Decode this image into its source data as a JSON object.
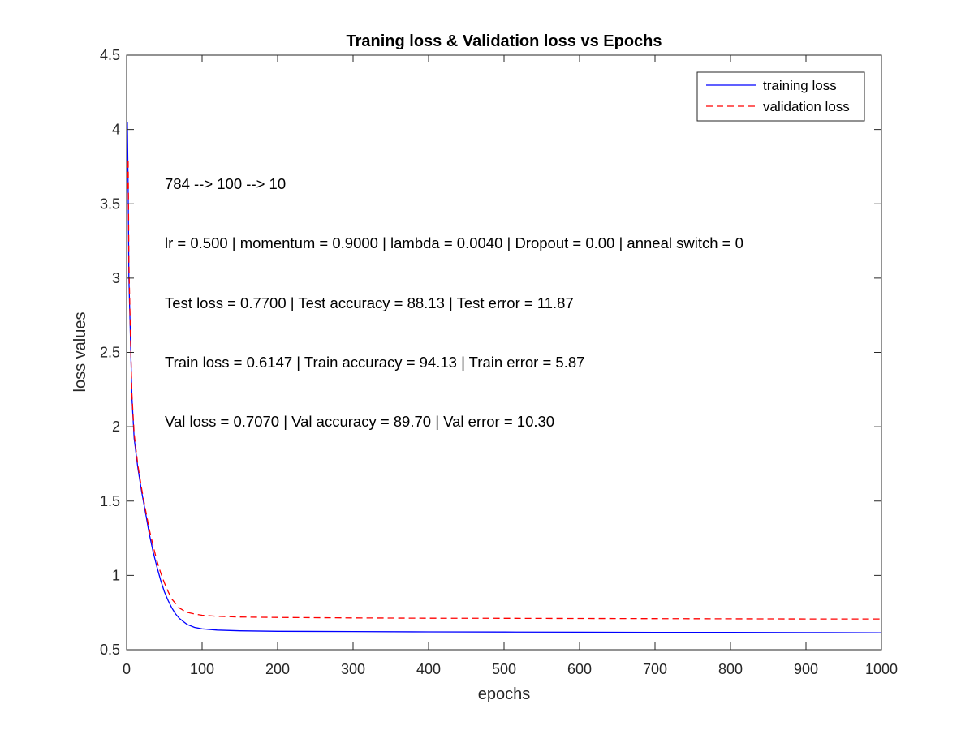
{
  "chart_data": {
    "type": "line",
    "title": "Traning loss & Validation loss vs Epochs",
    "xlabel": "epochs",
    "ylabel": "loss values",
    "xlim": [
      0,
      1000
    ],
    "ylim": [
      0.5,
      4.5
    ],
    "xticks": [
      0,
      100,
      200,
      300,
      400,
      500,
      600,
      700,
      800,
      900,
      1000
    ],
    "yticks": [
      0.5,
      1,
      1.5,
      2,
      2.5,
      3,
      3.5,
      4,
      4.5
    ],
    "ytick_labels": [
      "0.5",
      "1",
      "1.5",
      "2",
      "2.5",
      "3",
      "3.5",
      "4",
      "4.5"
    ],
    "grid": false,
    "legend_position": "top-right",
    "series": [
      {
        "name": "training loss",
        "color": "#0000ff",
        "style": "solid",
        "x": [
          1,
          2,
          3,
          5,
          7,
          10,
          15,
          20,
          25,
          30,
          35,
          40,
          45,
          50,
          55,
          60,
          65,
          70,
          75,
          80,
          90,
          100,
          120,
          150,
          200,
          300,
          400,
          500,
          600,
          700,
          800,
          900,
          1000
        ],
        "y": [
          4.05,
          3.6,
          3.0,
          2.6,
          2.2,
          1.92,
          1.72,
          1.56,
          1.42,
          1.28,
          1.16,
          1.06,
          0.97,
          0.89,
          0.83,
          0.78,
          0.74,
          0.71,
          0.69,
          0.67,
          0.65,
          0.64,
          0.632,
          0.627,
          0.624,
          0.622,
          0.62,
          0.619,
          0.618,
          0.617,
          0.616,
          0.615,
          0.614
        ]
      },
      {
        "name": "validation loss",
        "color": "#ff0000",
        "style": "dashed",
        "x": [
          1,
          2,
          3,
          5,
          7,
          10,
          15,
          20,
          25,
          30,
          35,
          40,
          45,
          50,
          55,
          60,
          65,
          70,
          75,
          80,
          90,
          100,
          120,
          150,
          200,
          300,
          400,
          500,
          600,
          700,
          800,
          900,
          1000
        ],
        "y": [
          3.6,
          3.8,
          3.1,
          2.62,
          2.22,
          1.95,
          1.74,
          1.58,
          1.44,
          1.31,
          1.2,
          1.1,
          1.02,
          0.95,
          0.89,
          0.84,
          0.81,
          0.78,
          0.765,
          0.752,
          0.74,
          0.732,
          0.725,
          0.72,
          0.717,
          0.714,
          0.712,
          0.711,
          0.71,
          0.709,
          0.708,
          0.707,
          0.707
        ]
      }
    ],
    "annotations": [
      "784 --> 100 --> 10",
      "lr = 0.500 | momentum = 0.9000 | lambda = 0.0040 | Dropout = 0.00 | anneal switch = 0",
      "Test loss = 0.7700 | Test accuracy = 88.13 | Test error = 11.87",
      "Train loss = 0.6147 | Train accuracy = 94.13 | Train error = 5.87",
      "Val loss = 0.7070 | Val accuracy = 89.70 | Val error = 10.30"
    ]
  }
}
